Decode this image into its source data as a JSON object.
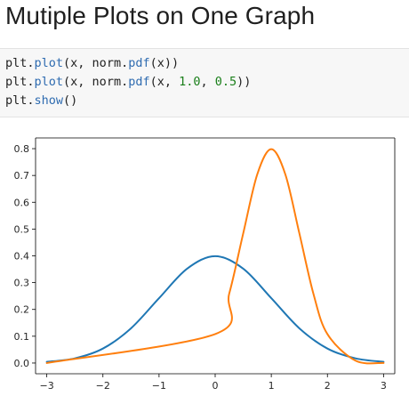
{
  "page": {
    "heading": "Mutiple Plots on One Graph"
  },
  "code": {
    "lines": [
      [
        {
          "t": "plt",
          "k": "plain"
        },
        {
          "t": ".",
          "k": "plain"
        },
        {
          "t": "plot",
          "k": "fn"
        },
        {
          "t": "(x, norm.",
          "k": "plain"
        },
        {
          "t": "pdf",
          "k": "fn"
        },
        {
          "t": "(x))",
          "k": "plain"
        }
      ],
      [
        {
          "t": "plt",
          "k": "plain"
        },
        {
          "t": ".",
          "k": "plain"
        },
        {
          "t": "plot",
          "k": "fn"
        },
        {
          "t": "(x, norm.",
          "k": "plain"
        },
        {
          "t": "pdf",
          "k": "fn"
        },
        {
          "t": "(x, ",
          "k": "plain"
        },
        {
          "t": "1.0",
          "k": "num"
        },
        {
          "t": ", ",
          "k": "plain"
        },
        {
          "t": "0.5",
          "k": "num"
        },
        {
          "t": "))",
          "k": "plain"
        }
      ],
      [
        {
          "t": "plt",
          "k": "plain"
        },
        {
          "t": ".",
          "k": "plain"
        },
        {
          "t": "show",
          "k": "fn"
        },
        {
          "t": "()",
          "k": "plain"
        }
      ]
    ]
  },
  "chart_data": {
    "type": "line",
    "title": "",
    "xlabel": "",
    "ylabel": "",
    "xlim": [
      -3.2,
      3.2
    ],
    "ylim": [
      -0.04,
      0.84
    ],
    "xticks": [
      -3,
      -2,
      -1,
      0,
      1,
      2,
      3
    ],
    "xtick_labels": [
      "−3",
      "−2",
      "−1",
      "0",
      "1",
      "2",
      "3"
    ],
    "yticks": [
      0.0,
      0.1,
      0.2,
      0.3,
      0.4,
      0.5,
      0.6,
      0.7,
      0.8
    ],
    "ytick_labels": [
      "0.0",
      "0.1",
      "0.2",
      "0.3",
      "0.4",
      "0.5",
      "0.6",
      "0.7",
      "0.8"
    ],
    "grid": false,
    "legend": "none",
    "series": [
      {
        "color": "#1f77b4",
        "x": [
          -3.0,
          -2.5,
          -2.0,
          -1.5,
          -1.0,
          -0.5,
          0.0,
          0.5,
          1.0,
          1.5,
          2.0,
          2.5,
          3.0
        ],
        "values": [
          0.0044,
          0.0175,
          0.054,
          0.1295,
          0.242,
          0.3521,
          0.3989,
          0.3521,
          0.242,
          0.1295,
          0.054,
          0.0175,
          0.0044
        ]
      },
      {
        "color": "#ff7f0e",
        "x": [
          -3.0,
          0.0,
          0.25,
          0.5,
          0.75,
          1.0,
          1.25,
          1.5,
          1.75,
          2.0,
          2.5,
          3.0
        ],
        "values": [
          0.0,
          0.108,
          0.259,
          0.484,
          0.704,
          0.798,
          0.704,
          0.484,
          0.259,
          0.108,
          0.009,
          0.0003
        ]
      }
    ]
  }
}
